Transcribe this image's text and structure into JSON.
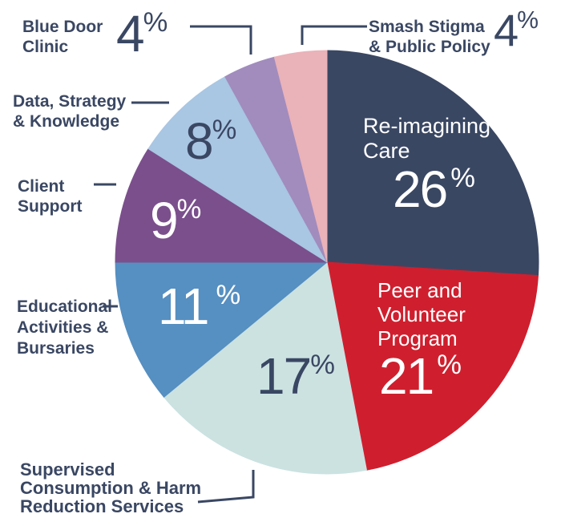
{
  "colors": {
    "text_navy": "#3a4763",
    "white": "#ffffff",
    "leader_line": "#3a4763",
    "background": "#ffffff"
  },
  "chart_data": {
    "type": "pie",
    "title": "",
    "direction": "clockwise",
    "start_angle_deg": 0,
    "values_unit": "%",
    "legend": false,
    "slices": [
      {
        "id": "re-imagining-care",
        "label": "Re-imagining Care",
        "label_lines": [
          "Re-imagining",
          "Care"
        ],
        "value": 26,
        "unit": "%",
        "color": "#3a4763",
        "value_label_color": "#ffffff"
      },
      {
        "id": "peer-and-volunteer-program",
        "label": "Peer and Volunteer Program",
        "label_lines": [
          "Peer and",
          "Volunteer",
          "Program"
        ],
        "value": 21,
        "unit": "%",
        "color": "#cf1f2e",
        "value_label_color": "#ffffff"
      },
      {
        "id": "supervised-consumption-harm-reduction-services",
        "label": "Supervised Consumption & Harm Reduction Services",
        "label_lines": [
          "Supervised",
          "Consumption & Harm",
          "Reduction Services"
        ],
        "value": 17,
        "unit": "%",
        "color": "#cbe2e1",
        "value_label_color": "#3a4763"
      },
      {
        "id": "educational-activities-bursaries",
        "label": "Educational Activities & Bursaries",
        "label_lines": [
          "Educational",
          "Activities &",
          "Bursaries"
        ],
        "value": 11,
        "unit": "%",
        "color": "#568fc1",
        "value_label_color": "#ffffff"
      },
      {
        "id": "client-support",
        "label": "Client Support",
        "label_lines": [
          "Client",
          "Support"
        ],
        "value": 9,
        "unit": "%",
        "color": "#7b4f8c",
        "value_label_color": "#ffffff"
      },
      {
        "id": "data-strategy-knowledge",
        "label": "Data, Strategy & Knowledge",
        "label_lines": [
          "Data, Strategy",
          "& Knowledge"
        ],
        "value": 8,
        "unit": "%",
        "color": "#a9c6e3",
        "value_label_color": "#3a4763"
      },
      {
        "id": "blue-door-clinic",
        "label": "Blue Door Clinic",
        "label_lines": [
          "Blue Door",
          "Clinic"
        ],
        "value": 4,
        "unit": "%",
        "color": "#a18cbd",
        "value_label_color": "#3a4763"
      },
      {
        "id": "smash-stigma-public-policy",
        "label": "Smash Stigma & Public Policy",
        "label_lines": [
          "Smash Stigma",
          "& Public Policy"
        ],
        "value": 4,
        "unit": "%",
        "color": "#eab2b9",
        "value_label_color": "#3a4763"
      }
    ]
  }
}
